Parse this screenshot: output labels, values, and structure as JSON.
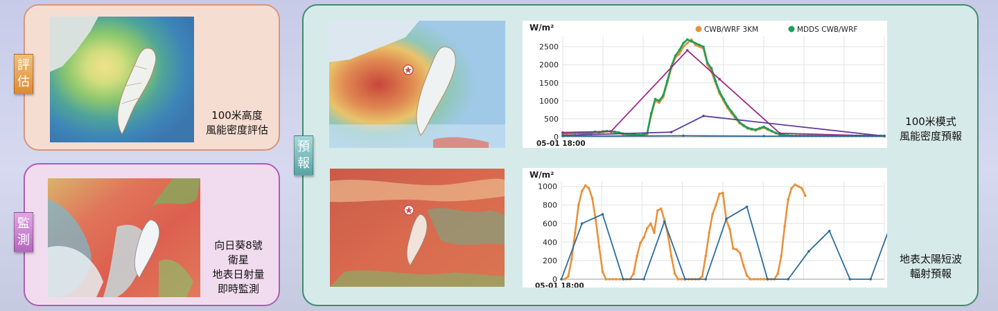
{
  "sections": {
    "evaluation": {
      "tag": "評估",
      "caption_lines": [
        "100米高度",
        "風能密度評估"
      ]
    },
    "monitoring": {
      "tag": "監測",
      "caption_lines": [
        "向日葵8號",
        "衛星",
        "地表日射量",
        "即時監測"
      ]
    },
    "forecast": {
      "tag": "預報",
      "wind_caption_lines": [
        "100米模式",
        "風能密度預報"
      ],
      "solar_caption_lines": [
        "地表太陽短波",
        "輻射預報"
      ]
    }
  },
  "colors": {
    "orange": "#e8913a",
    "green": "#1aa05a",
    "purple": "#9b2a8e",
    "violet": "#5e3c9a",
    "blue": "#2b6c9a"
  },
  "icons": [
    "star-marker-icon",
    "legend-dot-icon"
  ],
  "chart_data": [
    {
      "type": "line",
      "ylabel": "W/m²",
      "ylim": [
        0,
        2800
      ],
      "yticks": [
        0,
        500,
        1000,
        1500,
        2000,
        2500
      ],
      "x_start_label": "05-01 18:00",
      "legend_position": "top-right",
      "legend": [
        "CWB/WRF 3KM",
        "MDDS CWB/WRF"
      ],
      "grid": true,
      "x": [
        0,
        1,
        2,
        3,
        4,
        5,
        6,
        7,
        8,
        9,
        10,
        11,
        12,
        13,
        14,
        15,
        16,
        17,
        18,
        19,
        20,
        21,
        22,
        23,
        24,
        25,
        26,
        27,
        28,
        29,
        30,
        31,
        32,
        33,
        34,
        35,
        36,
        37,
        38,
        39,
        40,
        41,
        42,
        43,
        44,
        45,
        46,
        47,
        48,
        49,
        50,
        51,
        52,
        53,
        54,
        55,
        56,
        57,
        58,
        59,
        60,
        61,
        62,
        63,
        64,
        65,
        66,
        67,
        68,
        69,
        70,
        71,
        72,
        73,
        74,
        75,
        76,
        77,
        78,
        79,
        80
      ],
      "series": [
        {
          "name": "CWB/WRF 3KM",
          "color": "#e8913a",
          "values": [
            80,
            90,
            100,
            100,
            110,
            90,
            80,
            70,
            120,
            110,
            130,
            150,
            140,
            120,
            100,
            70,
            60,
            50,
            40,
            30,
            40,
            80,
            600,
            1000,
            950,
            1100,
            1500,
            1900,
            2200,
            2300,
            2500,
            2600,
            2700,
            2550,
            2500,
            2450,
            2000,
            1800,
            1500,
            1200,
            1000,
            800,
            650,
            500,
            380,
            300,
            230,
            200,
            180,
            220,
            250,
            200,
            150,
            100,
            60,
            40,
            30,
            20,
            20,
            20,
            20,
            20,
            20,
            20,
            20,
            20,
            20,
            20,
            20,
            20,
            20,
            20,
            20,
            20,
            20,
            20,
            20,
            20,
            20,
            20,
            20
          ]
        },
        {
          "name": "MDDS CWB/WRF",
          "color": "#1aa05a",
          "values": [
            100,
            110,
            110,
            110,
            110,
            110,
            100,
            100,
            140,
            130,
            150,
            160,
            150,
            140,
            120,
            90,
            80,
            70,
            60,
            50,
            60,
            100,
            650,
            1050,
            1000,
            1150,
            1550,
            1950,
            2250,
            2400,
            2600,
            2700,
            2650,
            2600,
            2550,
            2500,
            2050,
            1900,
            1550,
            1250,
            1050,
            850,
            700,
            550,
            400,
            320,
            250,
            220,
            200,
            240,
            280,
            220,
            160,
            110,
            70,
            50,
            40,
            30,
            30,
            30,
            30,
            30,
            30,
            30,
            30,
            30,
            30,
            30,
            30,
            30,
            30,
            30,
            30,
            30,
            30,
            30,
            30,
            30,
            30,
            30,
            30
          ]
        },
        {
          "name": "",
          "color": "#9b2a8e",
          "values": [
            120,
            null,
            null,
            null,
            null,
            null,
            null,
            null,
            null,
            null,
            null,
            null,
            150,
            null,
            null,
            null,
            null,
            null,
            null,
            null,
            null,
            null,
            null,
            null,
            null,
            null,
            null,
            null,
            null,
            null,
            null,
            2400,
            null,
            null,
            null,
            null,
            null,
            null,
            null,
            1600,
            null,
            null,
            null,
            null,
            null,
            null,
            null,
            null,
            null,
            null,
            null,
            null,
            null,
            null,
            100,
            null,
            null,
            null,
            null,
            null,
            null,
            null,
            null,
            null,
            null,
            null,
            null,
            null,
            null,
            null,
            null,
            null,
            null,
            null,
            null,
            null,
            null,
            null,
            null,
            null,
            20
          ]
        },
        {
          "name": "",
          "color": "#5e3c9a",
          "values": [
            40,
            null,
            null,
            null,
            null,
            null,
            null,
            null,
            null,
            null,
            null,
            null,
            null,
            null,
            null,
            null,
            null,
            null,
            null,
            null,
            null,
            null,
            null,
            null,
            null,
            null,
            null,
            130,
            null,
            null,
            null,
            null,
            null,
            null,
            null,
            580,
            null,
            null,
            null,
            null,
            null,
            null,
            null,
            null,
            null,
            null,
            null,
            null,
            null,
            null,
            null,
            null,
            null,
            null,
            null,
            null,
            null,
            null,
            null,
            null,
            null,
            null,
            null,
            null,
            null,
            null,
            null,
            null,
            null,
            null,
            null,
            null,
            null,
            null,
            null,
            null,
            null,
            null,
            null,
            null,
            20
          ]
        },
        {
          "name": "",
          "color": "#2b6c9a",
          "values": [
            20,
            null,
            null,
            null,
            null,
            null,
            null,
            null,
            null,
            null,
            null,
            null,
            null,
            null,
            null,
            null,
            null,
            null,
            null,
            null,
            null,
            null,
            null,
            null,
            null,
            null,
            null,
            null,
            null,
            null,
            30,
            null,
            null,
            null,
            null,
            null,
            null,
            null,
            null,
            null,
            null,
            null,
            null,
            null,
            null,
            null,
            null,
            null,
            null,
            null,
            20,
            null,
            null,
            null,
            null,
            null,
            null,
            null,
            null,
            null,
            null,
            null,
            null,
            null,
            null,
            null,
            null,
            null,
            null,
            null,
            null,
            null,
            null,
            null,
            null,
            null,
            null,
            null,
            null,
            null,
            20
          ]
        }
      ]
    },
    {
      "type": "line",
      "ylabel": "W/m²",
      "ylim": [
        0,
        1050
      ],
      "yticks": [
        0,
        200,
        400,
        600,
        800,
        1000
      ],
      "x_start_label": "05-01 18:00",
      "grid": true,
      "series": [
        {
          "name": "",
          "color": "#e8913a",
          "x": [
            0,
            1,
            2,
            3,
            4,
            5,
            6,
            7,
            8,
            9,
            10,
            11,
            12,
            13,
            14,
            15,
            16,
            17,
            18,
            19,
            20,
            21,
            22,
            23,
            24,
            25,
            26,
            27,
            28,
            29,
            30,
            31,
            32,
            33,
            34,
            35,
            36,
            37,
            38,
            39,
            40,
            41,
            42,
            43,
            44,
            45,
            46,
            47,
            48,
            49,
            50,
            51,
            52,
            53,
            54,
            55,
            56,
            57,
            58,
            59,
            60,
            61,
            62,
            63,
            64,
            65,
            66,
            67,
            68,
            69,
            70,
            71,
            72,
            73,
            74,
            75,
            76,
            77,
            78,
            79,
            80,
            81,
            82,
            83,
            84,
            85,
            86,
            87,
            88,
            89,
            90,
            91,
            92,
            93,
            94
          ],
          "values": [
            0,
            0,
            30,
            220,
            500,
            800,
            950,
            1010,
            980,
            870,
            640,
            350,
            80,
            0,
            0,
            0,
            0,
            0,
            0,
            0,
            0,
            60,
            250,
            390,
            450,
            550,
            600,
            500,
            740,
            760,
            640,
            480,
            250,
            60,
            0,
            0,
            0,
            0,
            0,
            0,
            0,
            30,
            250,
            500,
            700,
            800,
            920,
            930,
            640,
            540,
            330,
            320,
            280,
            150,
            40,
            0,
            0,
            0,
            0,
            0,
            0,
            0,
            0,
            60,
            250,
            570,
            860,
            980,
            1020,
            1000,
            980,
            900,
            null,
            null,
            null,
            null,
            null,
            null,
            null,
            null,
            null,
            null,
            null,
            null,
            null,
            null,
            null,
            null,
            null,
            null,
            null,
            null,
            null,
            null,
            null
          ]
        },
        {
          "name": "",
          "color": "#2b6c9a",
          "x": [
            0,
            6,
            12,
            18,
            24,
            30,
            36,
            42,
            48,
            54,
            60,
            66,
            72,
            78,
            84,
            90,
            96
          ],
          "values": [
            0,
            600,
            700,
            0,
            0,
            620,
            0,
            0,
            650,
            780,
            0,
            0,
            300,
            520,
            0,
            0,
            600
          ]
        }
      ]
    }
  ]
}
